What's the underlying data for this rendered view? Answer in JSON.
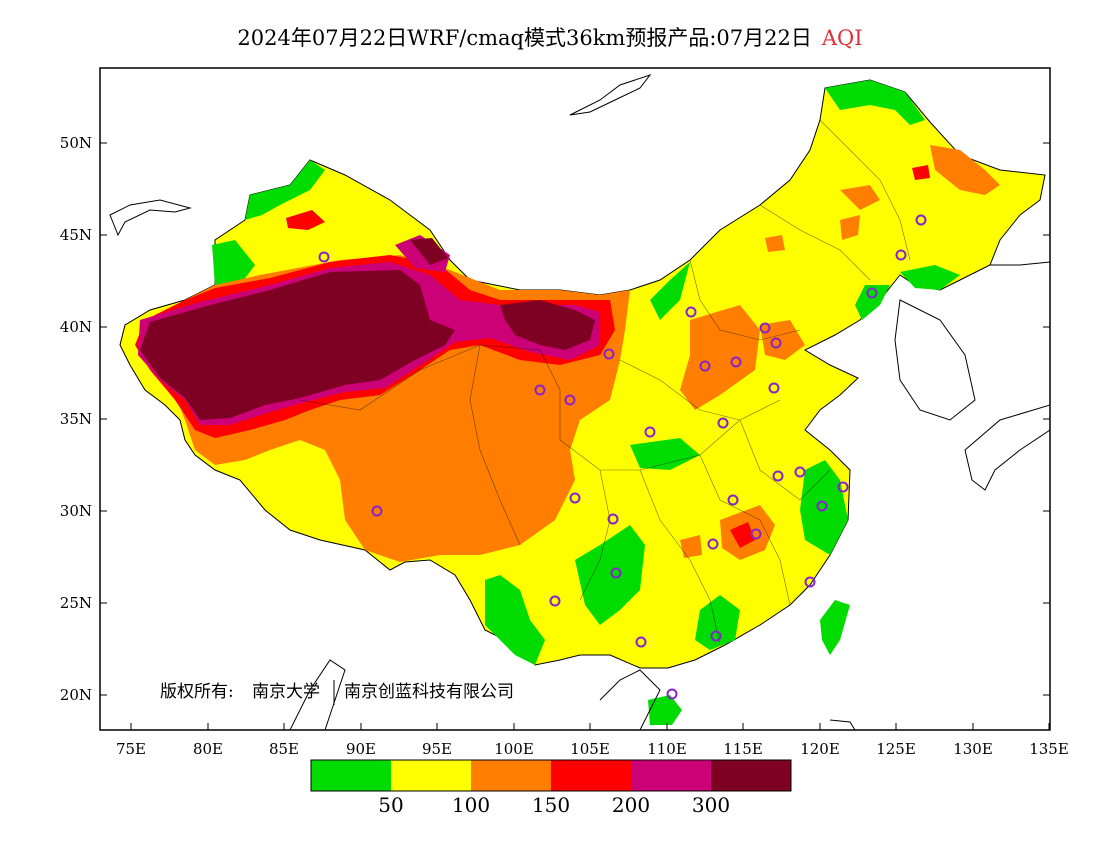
{
  "title": {
    "main": "2024年07月22日WRF/cmaq模式36km预报产品:07月22日",
    "variable": "AQI"
  },
  "copyright": {
    "owner_label": "版权所有:",
    "org1": "南京大学",
    "org2": "南京创蓝科技有限公司"
  },
  "map": {
    "lat_ticks": [
      "20N",
      "25N",
      "30N",
      "35N",
      "40N",
      "45N",
      "50N"
    ],
    "lon_ticks": [
      "75E",
      "80E",
      "85E",
      "90E",
      "95E",
      "100E",
      "105E",
      "110E",
      "115E",
      "120E",
      "125E",
      "130E",
      "135E"
    ]
  },
  "legend": {
    "colors": [
      "#00dc00",
      "#ffff00",
      "#ff7e00",
      "#ff0000",
      "#cc0077",
      "#7e0023"
    ],
    "labels": [
      "50",
      "100",
      "150",
      "200",
      "300"
    ]
  },
  "colors": {
    "good": "#00dc00",
    "moderate": "#ffff00",
    "usg": "#ff7e00",
    "unhealthy": "#ff0000",
    "very_unhealthy": "#cc0077",
    "hazardous": "#7e0023",
    "station_marker": "#8822cc"
  }
}
